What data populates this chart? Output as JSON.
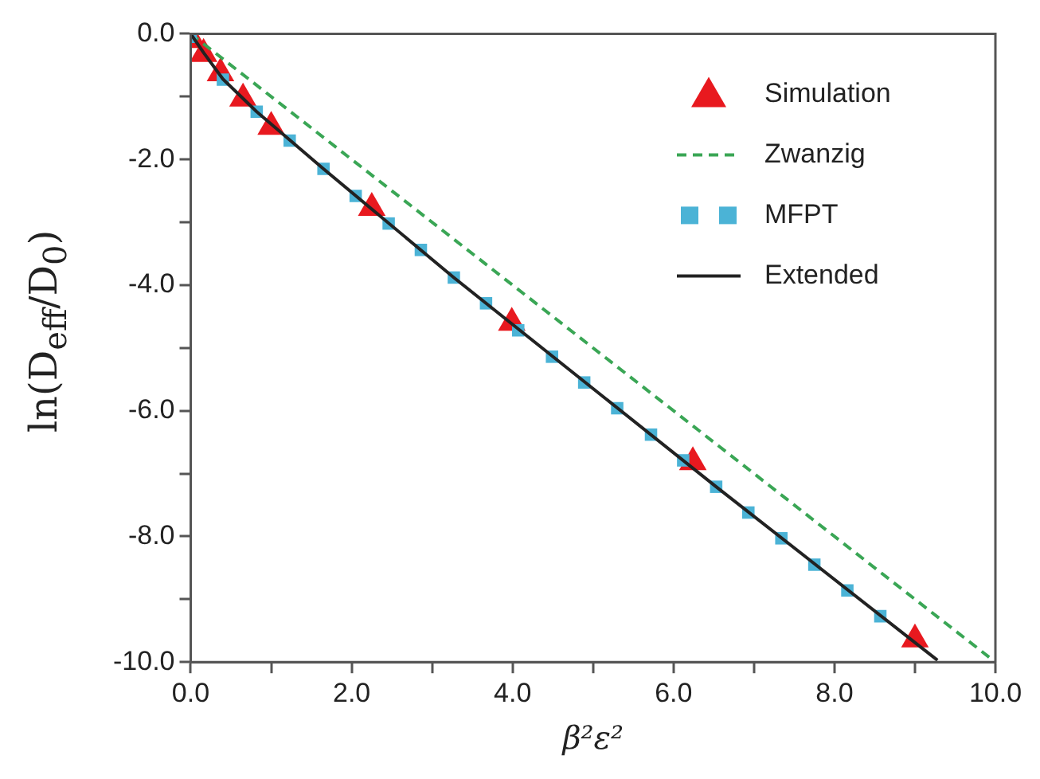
{
  "chart_data": {
    "type": "scatter",
    "xlabel": "β²ε²",
    "ylabel": "ln(D$_{eff}$/D$_{0}$)",
    "xlim": [
      0,
      10
    ],
    "ylim": [
      -10,
      0
    ],
    "xticks": [
      {
        "value": 0,
        "label": "0.0"
      },
      {
        "value": 1,
        "label": null
      },
      {
        "value": 2,
        "label": "2.0"
      },
      {
        "value": 3,
        "label": null
      },
      {
        "value": 4,
        "label": "4.0"
      },
      {
        "value": 5,
        "label": null
      },
      {
        "value": 6,
        "label": "6.0"
      },
      {
        "value": 7,
        "label": null
      },
      {
        "value": 8,
        "label": "8.0"
      },
      {
        "value": 9,
        "label": null
      },
      {
        "value": 10,
        "label": "10.0"
      }
    ],
    "yticks": [
      {
        "value": 0,
        "label": "0.0"
      },
      {
        "value": -1,
        "label": null
      },
      {
        "value": -2,
        "label": "-2.0"
      },
      {
        "value": -3,
        "label": null
      },
      {
        "value": -4,
        "label": "-4.0"
      },
      {
        "value": -5,
        "label": null
      },
      {
        "value": -6,
        "label": "-6.0"
      },
      {
        "value": -7,
        "label": null
      },
      {
        "value": -8,
        "label": "-8.0"
      },
      {
        "value": -9,
        "label": null
      },
      {
        "value": -10,
        "label": "-10.0"
      }
    ],
    "grid": false,
    "legend": "top right",
    "series": [
      {
        "name": "Extended",
        "type": "line",
        "color": "#222222",
        "line_style": "solid",
        "marker": "none",
        "x": [
          0,
          0.16,
          0.4,
          0.82,
          1.65,
          3.27,
          6.53,
          9.28
        ],
        "values": [
          0,
          -0.3,
          -0.72,
          -1.24,
          -2.15,
          -3.88,
          -7.21,
          -9.97
        ]
      },
      {
        "name": "MFPT",
        "type": "scatter",
        "color": "#4bb3d6",
        "marker": "square",
        "x": [
          0,
          0.4,
          0.82,
          1.23,
          1.65,
          2.05,
          2.46,
          2.86,
          3.27,
          3.67,
          4.07,
          4.49,
          4.89,
          5.3,
          5.72,
          6.12,
          6.53,
          6.93,
          7.34,
          7.75,
          8.16,
          8.57
        ],
        "values": [
          -0.05,
          -0.73,
          -1.24,
          -1.7,
          -2.15,
          -2.58,
          -3.02,
          -3.44,
          -3.88,
          -4.29,
          -4.72,
          -5.14,
          -5.55,
          -5.96,
          -6.38,
          -6.79,
          -7.21,
          -7.62,
          -8.03,
          -8.45,
          -8.86,
          -9.27
        ]
      },
      {
        "name": "Zwanzig",
        "type": "line",
        "color": "#3aa655",
        "line_style": "dashed",
        "marker": "none",
        "x": [
          0,
          10
        ],
        "values": [
          0,
          -10
        ]
      },
      {
        "name": "Simulation",
        "type": "scatter",
        "color": "#e8191f",
        "marker": "triangle",
        "x": [
          0.02,
          0.16,
          0.37,
          0.65,
          1.0,
          2.25,
          3.99,
          6.24,
          9.0
        ],
        "values": [
          -0.1,
          -0.32,
          -0.63,
          -1.03,
          -1.48,
          -2.77,
          -4.6,
          -6.82,
          -9.64
        ]
      }
    ]
  }
}
